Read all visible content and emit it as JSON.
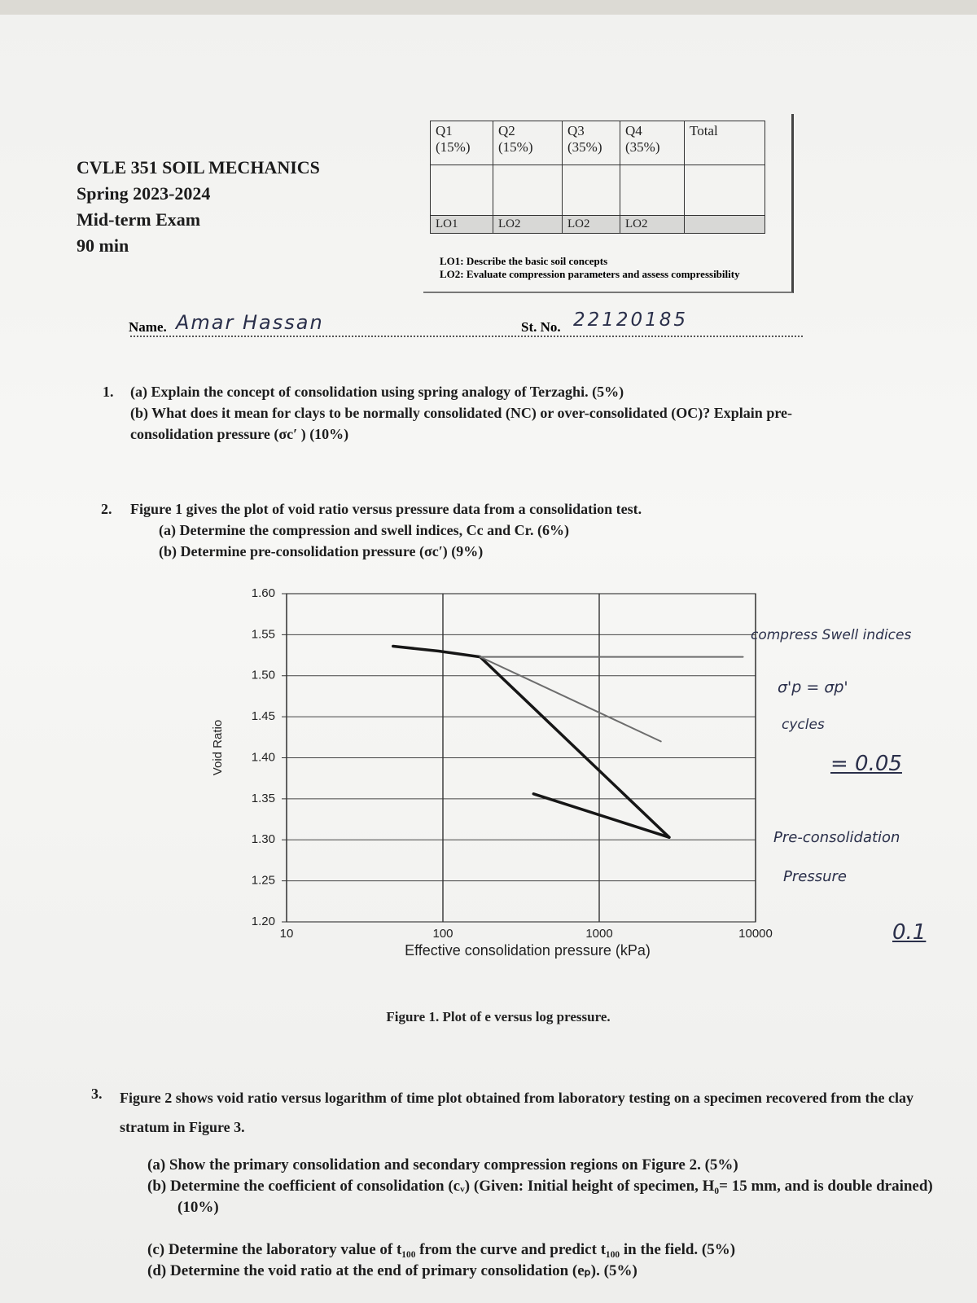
{
  "header": {
    "course": "CVLE 351 SOIL MECHANICS",
    "semester": "Spring 2023-2024",
    "exam": "Mid-term Exam",
    "duration": "90 min"
  },
  "marks_table": {
    "columns": [
      {
        "question": "Q1",
        "weight": "(15%)",
        "outcome": "LO1"
      },
      {
        "question": "Q2",
        "weight": "(15%)",
        "outcome": "LO2"
      },
      {
        "question": "Q3",
        "weight": "(35%)",
        "outcome": "LO2"
      },
      {
        "question": "Q4",
        "weight": "(35%)",
        "outcome": "LO2"
      },
      {
        "question": "Total"
      }
    ],
    "outcomes": [
      "LO1: Describe the basic soil concepts",
      "LO2: Evaluate compression parameters and assess compressibility"
    ]
  },
  "student": {
    "name_label": "Name.",
    "name": "Amar Hassan",
    "number_label": "St. No.",
    "number": "22120185"
  },
  "questions": [
    {
      "number": "1.",
      "parts": [
        "(a) Explain the concept of consolidation using spring analogy of Terzaghi. (5%)",
        "(b) What does it mean for clays to be normally consolidated (NC) or over-consolidated (OC)? Explain pre-consolidation pressure (σc′ ) (10%)"
      ]
    },
    {
      "number": "2.",
      "text": "Figure 1 gives the plot of void ratio versus pressure data from a consolidation test.",
      "parts": [
        "(a) Determine the compression and swell indices, Cc and Cr. (6%)",
        "(b) Determine pre-consolidation pressure (σc′) (9%)"
      ]
    },
    {
      "number": "3.",
      "text": "Figure 2 shows void ratio versus logarithm of time plot obtained from laboratory testing on a specimen recovered from the clay stratum in Figure 3.",
      "parts": [
        "(a) Show the primary consolidation and secondary compression regions on Figure 2. (5%)",
        "(b) Determine the coefficient of consolidation (cᵥ) (Given: Initial height of specimen, H₀= 15 mm, and is double drained) (10%)",
        "(c) Determine the laboratory value of t₁₀₀ from the curve and predict t₁₀₀ in the field. (5%)",
        "(d) Determine the void ratio at the end of primary consolidation (eₚ). (5%)"
      ]
    }
  ],
  "figure_1": {
    "type": "line",
    "y_label": "Void Ratio",
    "x_label": "Effective consolidation pressure (kPa)",
    "caption": "Figure 1. Plot of e versus log pressure.",
    "log_x": true,
    "grid": true,
    "xlim": [
      10,
      10000
    ],
    "ylim": [
      1.2,
      1.6
    ],
    "xticks": [
      10,
      100,
      1000,
      10000
    ],
    "yticks": [
      {
        "value": 1.6,
        "label": "1.60"
      },
      {
        "value": 1.55,
        "label": "1.55"
      },
      {
        "value": 1.5,
        "label": "1.50"
      },
      {
        "value": 1.45,
        "label": "1.45"
      },
      {
        "value": 1.4,
        "label": "1.40"
      },
      {
        "value": 1.35,
        "label": "1.35"
      },
      {
        "value": 1.3,
        "label": "1.30"
      },
      {
        "value": 1.25,
        "label": "1.25"
      },
      {
        "value": 1.2,
        "label": "1.20"
      }
    ],
    "series": [
      {
        "color": "#161616",
        "x": [
          48,
          94,
          173,
          2800
        ],
        "values": [
          1.536,
          1.53,
          1.523,
          1.303
        ]
      },
      {
        "color": "#161616",
        "x": [
          2800,
          380
        ],
        "values": [
          1.303,
          1.356
        ]
      },
      {
        "color": "#6d6d6d",
        "x": [
          173,
          8300
        ],
        "values": [
          1.523,
          1.523
        ]
      },
      {
        "color": "#6d6d6d",
        "x": [
          173,
          2480
        ],
        "values": [
          1.523,
          1.42
        ]
      }
    ]
  },
  "handwritten_notes": [
    "compress Swell indices",
    "σ'p = σp'",
    "cycles",
    "= 0.05",
    "Pre-consolidation",
    "Pressure",
    "0.1"
  ]
}
